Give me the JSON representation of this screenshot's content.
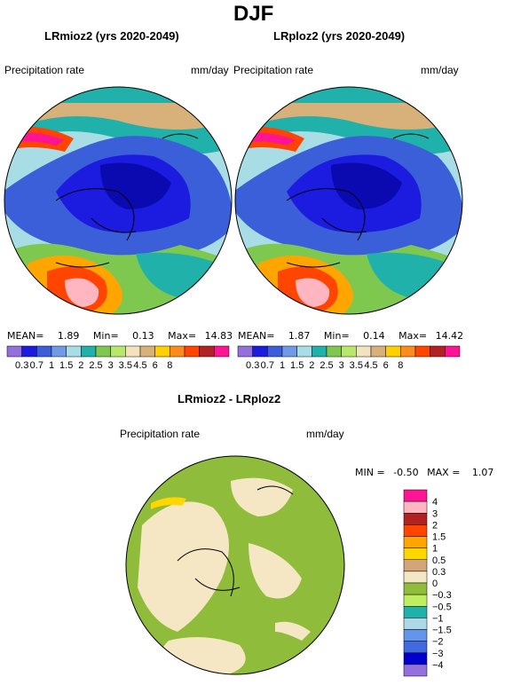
{
  "figure": {
    "title": "DJF",
    "diff_title": "LRmioz2 - LRploz2",
    "field_label": "Precipitation rate",
    "units": "mm/day"
  },
  "panels": [
    {
      "title": "LRmioz2 (yrs 2020-2049)",
      "stats": {
        "mean_label": "MEAN=",
        "mean": "1.89",
        "min_label": "Min=",
        "min": "0.13",
        "max_label": "Max=",
        "max": "14.83"
      }
    },
    {
      "title": "LRploz2 (yrs 2020-2049)",
      "stats": {
        "mean_label": "MEAN=",
        "mean": "1.87",
        "min_label": "Min=",
        "min": "0.14",
        "max_label": "Max=",
        "max": "14.42"
      }
    }
  ],
  "diff_stats": {
    "min_label": "MIN =",
    "min": "-0.50",
    "max_label": "MAX =",
    "max": "1.07"
  },
  "colorbar_main": {
    "labels": [
      "0.3",
      "0.7",
      "1",
      "1.5",
      "2",
      "2.5",
      "3",
      "3.5",
      "4.5",
      "6",
      "8"
    ],
    "colors": [
      "#9370db",
      "#1c1ce0",
      "#3a5fd8",
      "#6f9be6",
      "#a8dde6",
      "#20b2aa",
      "#7ec850",
      "#b8e86a",
      "#f2e2be",
      "#d8b07a",
      "#ffd000",
      "#ff8c1a",
      "#ff4500",
      "#b22222",
      "#ff1493"
    ]
  },
  "colorbar_diff": {
    "labels": [
      "4",
      "3",
      "2",
      "1.5",
      "1",
      "0.5",
      "0.3",
      "0",
      "−0.3",
      "−0.5",
      "−1",
      "−1.5",
      "−2",
      "−3",
      "−4"
    ],
    "colors": [
      "#ff1493",
      "#ffb6c1",
      "#b22222",
      "#ff4500",
      "#ffa500",
      "#ffd700",
      "#d2a679",
      "#f5e6c4",
      "#8fbc3a",
      "#bfef5e",
      "#20b2aa",
      "#add8e6",
      "#6495ed",
      "#4169e1",
      "#0000cd",
      "#9370db"
    ]
  }
}
